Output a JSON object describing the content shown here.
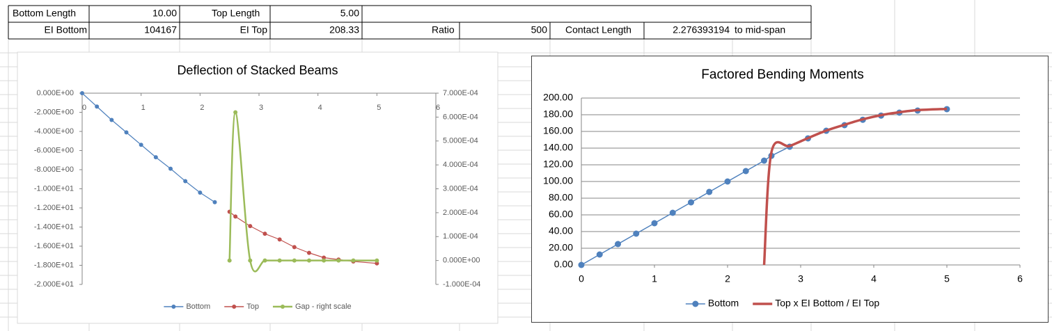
{
  "table": {
    "rows": [
      [
        "Bottom Length",
        "10.00",
        "Top Length",
        "5.00"
      ],
      [
        "EI Bottom",
        "104167",
        "EI Top",
        "208.33",
        "Ratio",
        "500",
        "Contact Length",
        "2.276393194",
        "to mid-span"
      ]
    ]
  },
  "chart_data": [
    {
      "type": "line",
      "title": "Deflection of Stacked Beams",
      "x": [
        0,
        0.25,
        0.5,
        0.75,
        1,
        1.25,
        1.5,
        1.75,
        2,
        2.25,
        2.5,
        2.6,
        2.85,
        3.1,
        3.35,
        3.6,
        3.85,
        4.1,
        4.35,
        4.6,
        5
      ],
      "xlim": [
        0,
        6
      ],
      "xticks": [
        0,
        1,
        2,
        3,
        4,
        5,
        6
      ],
      "ylim": [
        -20,
        0
      ],
      "yticks": [
        {
          "value": -20,
          "label": "-2.000E+01"
        },
        {
          "value": -18,
          "label": "-1.800E+01"
        },
        {
          "value": -16,
          "label": "-1.600E+01"
        },
        {
          "value": -14,
          "label": "-1.400E+01"
        },
        {
          "value": -12,
          "label": "-1.200E+01"
        },
        {
          "value": -10,
          "label": "-1.000E+01"
        },
        {
          "value": -8,
          "label": "-8.000E+00"
        },
        {
          "value": -6,
          "label": "-6.000E+00"
        },
        {
          "value": -4,
          "label": "-4.000E+00"
        },
        {
          "value": -2,
          "label": "-2.000E+00"
        },
        {
          "value": 0,
          "label": "0.000E+00"
        }
      ],
      "y2lim": [
        -0.0001,
        0.0007
      ],
      "y2ticks": [
        {
          "value": -0.0001,
          "label": "-1.000E-04"
        },
        {
          "value": 0,
          "label": "0.000E+00"
        },
        {
          "value": 0.0001,
          "label": "1.000E-04"
        },
        {
          "value": 0.0002,
          "label": "2.000E-04"
        },
        {
          "value": 0.0003,
          "label": "3.000E-04"
        },
        {
          "value": 0.0004,
          "label": "4.000E-04"
        },
        {
          "value": 0.0005,
          "label": "5.000E-04"
        },
        {
          "value": 0.0006,
          "label": "6.000E-04"
        },
        {
          "value": 0.0007,
          "label": "7.000E-04"
        }
      ],
      "grid": false,
      "legend": "bottom",
      "series": [
        {
          "name": "Bottom",
          "color": "#4f81bd",
          "markers": true,
          "smooth": false,
          "values": [
            0,
            -1.4,
            -2.8,
            -4.1,
            -5.4,
            -6.7,
            -7.9,
            -9.2,
            -10.4,
            -11.4,
            null,
            null,
            null,
            null,
            null,
            null,
            null,
            null,
            null,
            null,
            null
          ]
        },
        {
          "name": "Top",
          "color": "#c0504d",
          "markers": true,
          "smooth": false,
          "values": [
            null,
            null,
            null,
            null,
            null,
            null,
            null,
            null,
            null,
            null,
            -12.4,
            -12.9,
            -13.9,
            -14.7,
            -15.3,
            -16.1,
            -16.7,
            -17.2,
            -17.4,
            -17.6,
            -17.8
          ]
        },
        {
          "name": "Gap - right scale",
          "color": "#9bbb59",
          "markers": true,
          "smooth": true,
          "axis": "y2",
          "values": [
            null,
            null,
            null,
            null,
            null,
            null,
            null,
            null,
            null,
            null,
            0,
            0.00062,
            0,
            0,
            0,
            0,
            0,
            0,
            0,
            0,
            0
          ]
        }
      ]
    },
    {
      "type": "line",
      "title": "Factored Bending Moments",
      "x": [
        0,
        0.25,
        0.5,
        0.75,
        1,
        1.25,
        1.5,
        1.75,
        2,
        2.25,
        2.5,
        2.6,
        2.85,
        3.1,
        3.35,
        3.6,
        3.85,
        4.1,
        4.35,
        4.6,
        5
      ],
      "xlim": [
        0,
        6
      ],
      "xticks": [
        0,
        1,
        2,
        3,
        4,
        5,
        6
      ],
      "ylim": [
        0,
        200
      ],
      "yticks": [
        {
          "value": 0,
          "label": "0.00"
        },
        {
          "value": 20,
          "label": "20.00"
        },
        {
          "value": 40,
          "label": "40.00"
        },
        {
          "value": 60,
          "label": "60.00"
        },
        {
          "value": 80,
          "label": "80.00"
        },
        {
          "value": 100,
          "label": "100.00"
        },
        {
          "value": 120,
          "label": "120.00"
        },
        {
          "value": 140,
          "label": "140.00"
        },
        {
          "value": 160,
          "label": "160.00"
        },
        {
          "value": 180,
          "label": "180.00"
        },
        {
          "value": 200,
          "label": "200.00"
        }
      ],
      "grid": true,
      "legend": "bottom",
      "series": [
        {
          "name": "Bottom",
          "color": "#4f81bd",
          "markers": true,
          "smooth": false,
          "values": [
            0,
            12.5,
            25,
            37.5,
            50,
            62.5,
            75,
            87.5,
            100,
            112.5,
            125,
            130.8,
            141.7,
            151.7,
            160.8,
            167.5,
            174,
            179,
            182.5,
            185,
            186.7
          ]
        },
        {
          "name": "Top x EI Bottom / EI Top",
          "color": "#c0504d",
          "markers": false,
          "smooth": true,
          "values": [
            null,
            null,
            null,
            null,
            null,
            null,
            null,
            null,
            null,
            null,
            0,
            135,
            142.5,
            152,
            161,
            168,
            174.5,
            179.5,
            183,
            185.5,
            187
          ]
        }
      ]
    }
  ]
}
